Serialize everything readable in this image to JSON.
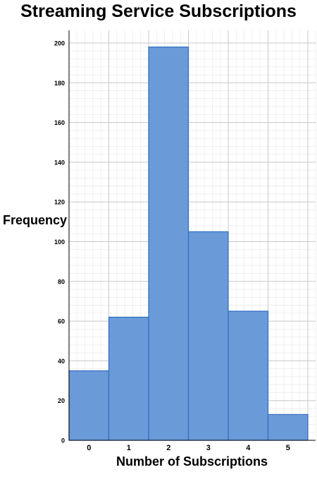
{
  "chart_data": {
    "type": "bar",
    "title": "Streaming Service Subscriptions",
    "xlabel": "Number of Subscriptions",
    "ylabel": "Frequency",
    "categories": [
      "0",
      "1",
      "2",
      "3",
      "4",
      "5"
    ],
    "values": [
      35,
      62,
      198,
      105,
      65,
      13
    ],
    "ylim": [
      0,
      200
    ],
    "yticks": [
      "0",
      "20",
      "40",
      "60",
      "80",
      "100",
      "120",
      "140",
      "160",
      "180",
      "200"
    ],
    "grid": true,
    "minor_grid": true,
    "bar_color": "#6a9bd8",
    "bar_edge_color": "#2f6cc0"
  }
}
